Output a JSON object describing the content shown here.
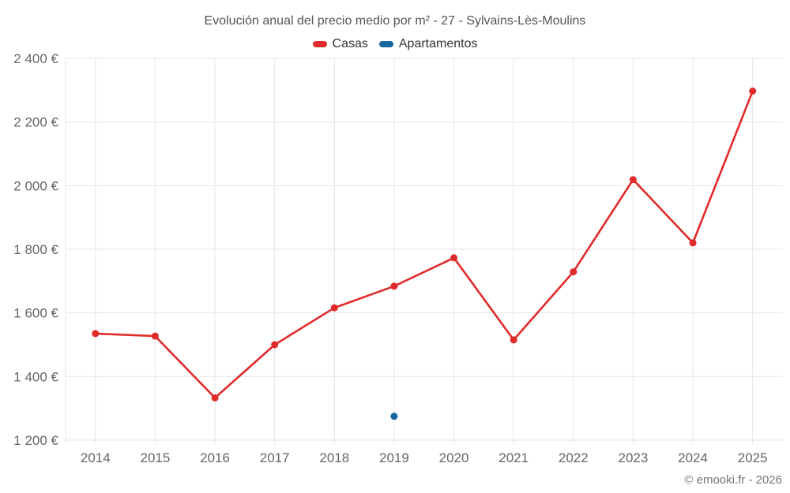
{
  "chart": {
    "title": "Evolución anual del precio medio por m² - 27 - Sylvains-Lès-Moulins",
    "credit": "© emooki.fr - 2026"
  },
  "legend": {
    "items": [
      {
        "label": "Casas",
        "color": "#e02b2b"
      },
      {
        "label": "Apartamentos",
        "color": "#15689e"
      }
    ]
  },
  "chart_data": {
    "type": "line",
    "title": "Evolución anual del precio medio por m² - 27 - Sylvains-Lès-Moulins",
    "categories": [
      "2014",
      "2015",
      "2016",
      "2017",
      "2018",
      "2019",
      "2020",
      "2021",
      "2022",
      "2023",
      "2024",
      "2025"
    ],
    "series": [
      {
        "name": "Casas",
        "color": "#e02b2b",
        "values": [
          1535,
          1527,
          1333,
          1500,
          1616,
          1684,
          1773,
          1515,
          1729,
          2019,
          1820,
          2297
        ]
      },
      {
        "name": "Apartamentos",
        "color": "#15689e",
        "values": [
          null,
          null,
          null,
          null,
          null,
          1275,
          null,
          null,
          null,
          null,
          null,
          null
        ]
      }
    ],
    "xlabel": "",
    "ylabel": "",
    "ylim": [
      1200,
      2400
    ],
    "ytick_step": 200,
    "ytick_suffix": " €",
    "grid": true,
    "legend_position": "top",
    "colors": {
      "gridline": "#e6e6e6",
      "axis_label": "#666666",
      "title": "#555555",
      "legend_text": "#333333",
      "credits": "#757575"
    }
  }
}
